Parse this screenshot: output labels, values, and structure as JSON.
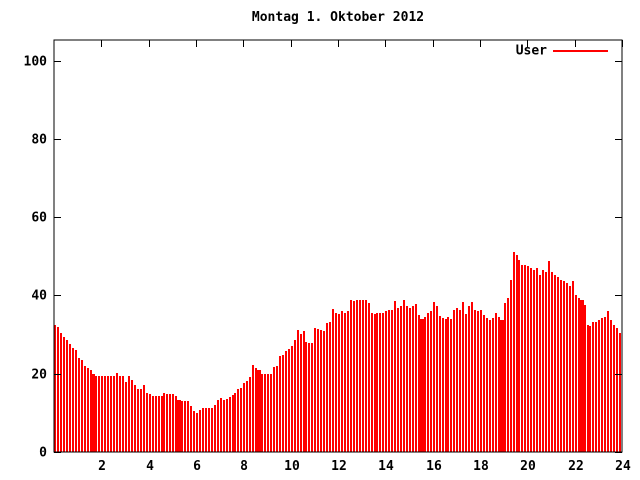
{
  "title": "Montag 1. Oktober 2012",
  "legend": {
    "label": "User",
    "color": "#ff0000"
  },
  "colors": {
    "series": "#ff0000",
    "axis": "#000000",
    "background": "#ffffff"
  },
  "chart_data": {
    "type": "bar",
    "title": "Montag 1. Oktober 2012",
    "xlabel": "",
    "ylabel": "",
    "series_name": "User",
    "x_start_hours": 0,
    "x_step_hours": 0.125,
    "xlim": [
      0,
      24
    ],
    "ylim": [
      0,
      105
    ],
    "xticks": [
      2,
      4,
      6,
      8,
      10,
      12,
      14,
      16,
      18,
      20,
      22,
      24
    ],
    "yticks": [
      0,
      20,
      40,
      60,
      80,
      100
    ],
    "grid": false,
    "legend_position": "top-right-inside",
    "wide_indices": [
      13,
      42,
      69,
      124,
      151,
      178
    ],
    "values": [
      32.5,
      32.0,
      30.5,
      29.5,
      28.5,
      27.5,
      26.5,
      26.0,
      24.0,
      23.5,
      22.0,
      21.5,
      21.0,
      20.0,
      19.3,
      19.3,
      19.3,
      19.3,
      19.3,
      19.3,
      19.3,
      20.3,
      19.3,
      19.3,
      18.0,
      19.3,
      18.5,
      17.0,
      16.0,
      16.0,
      17.2,
      15.0,
      14.7,
      14.3,
      14.3,
      14.3,
      14.3,
      15.0,
      14.7,
      14.7,
      14.7,
      14.3,
      13.4,
      13.0,
      13.0,
      13.0,
      11.7,
      10.4,
      10.0,
      10.8,
      11.3,
      11.3,
      11.3,
      11.3,
      12.1,
      13.4,
      13.8,
      13.4,
      13.6,
      14.1,
      14.6,
      15.1,
      16.0,
      16.4,
      17.7,
      18.1,
      19.2,
      22.1,
      21.5,
      21.0,
      19.8,
      19.8,
      19.8,
      19.8,
      21.7,
      21.9,
      24.5,
      24.9,
      25.8,
      26.3,
      27.0,
      28.7,
      31.2,
      30.1,
      30.8,
      28.2,
      27.8,
      27.8,
      31.6,
      31.4,
      31.2,
      31.0,
      32.9,
      33.3,
      36.5,
      35.5,
      35.2,
      35.9,
      35.6,
      35.9,
      38.9,
      38.6,
      38.7,
      38.7,
      38.9,
      38.7,
      38.0,
      35.5,
      35.2,
      35.5,
      35.6,
      35.5,
      35.9,
      36.3,
      36.2,
      38.5,
      36.8,
      37.2,
      38.7,
      37.3,
      36.8,
      37.4,
      37.7,
      35.1,
      34.0,
      34.6,
      35.4,
      36.0,
      38.3,
      37.2,
      34.8,
      34.2,
      33.9,
      34.4,
      33.9,
      36.3,
      36.7,
      36.2,
      38.4,
      35.3,
      37.2,
      38.2,
      36.3,
      35.9,
      36.3,
      35.0,
      34.2,
      33.8,
      34.2,
      35.6,
      34.6,
      33.8,
      38.0,
      39.3,
      44.0,
      51.2,
      50.4,
      49.1,
      47.8,
      47.8,
      47.4,
      47.0,
      46.5,
      47.0,
      45.3,
      46.5,
      46.1,
      48.7,
      46.1,
      45.3,
      44.8,
      44.0,
      43.6,
      43.1,
      42.3,
      43.8,
      40.2,
      39.3,
      38.9,
      37.6,
      32.5,
      32.2,
      33.3,
      33.1,
      33.8,
      34.2,
      34.6,
      35.9,
      33.8,
      32.5,
      31.8,
      30.5
    ]
  }
}
